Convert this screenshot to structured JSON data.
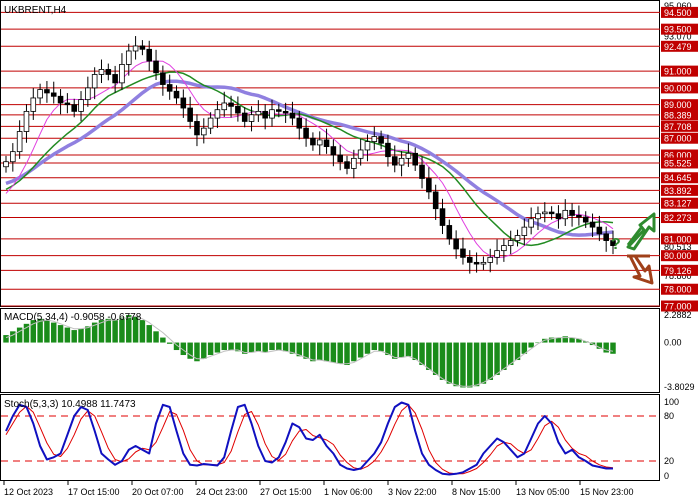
{
  "colors": {
    "price": "#000000",
    "level_line": "#c00000",
    "price_tag_bg": "#c00000",
    "price_tag_text": "#ffffff",
    "ma_fast": "#e040e0",
    "ma_mid": "#228b22",
    "ma_slow": "#9080e0",
    "macd_hist": "#1a8c1a",
    "macd_signal": "#c0c0c0",
    "stoch_main": "#1010c0",
    "stoch_signal": "#e00000",
    "arrow_up": "#2e8b2e",
    "arrow_down": "#a0401a",
    "grid_text": "#000000"
  },
  "chart_data": [
    {
      "type": "candlestick",
      "title": "UKBRENT,H4",
      "x_labels": [
        "12 Oct 2023",
        "17 Oct 15:00",
        "20 Oct 07:00",
        "24 Oct 23:00",
        "27 Oct 15:00",
        "1 Nov 06:00",
        "3 Nov 22:00",
        "8 Nov 15:00",
        "13 Nov 05:00",
        "15 Nov 23:00"
      ],
      "y_range": [
        77.0,
        95.06
      ],
      "y_top_label": "95.060",
      "levels": [
        "94.500",
        "93.500",
        "92.479",
        "91.000",
        "90.000",
        "89.000",
        "88.389",
        "87.708",
        "87.000",
        "86.000",
        "85.525",
        "84.645",
        "83.892",
        "83.127",
        "82.273",
        "81.000",
        "80.000",
        "79.126",
        "78.000",
        "77.000"
      ],
      "faint_labels": [
        "93.070",
        "80.513",
        "78.800"
      ],
      "close": [
        85.6,
        86.2,
        87.4,
        88.6,
        89.4,
        89.9,
        89.7,
        89.5,
        89.1,
        89.0,
        88.6,
        89.3,
        90.0,
        90.8,
        91.1,
        90.8,
        90.3,
        91.4,
        92.2,
        92.5,
        92.3,
        91.6,
        90.9,
        90.2,
        89.8,
        89.4,
        88.8,
        88.0,
        87.2,
        87.6,
        88.2,
        88.7,
        89.1,
        88.9,
        88.5,
        88.0,
        88.4,
        88.6,
        88.2,
        88.7,
        88.6,
        88.5,
        88.2,
        87.6,
        87.0,
        86.6,
        86.9,
        86.5,
        86.0,
        85.6,
        85.2,
        85.8,
        86.3,
        86.8,
        87.1,
        86.7,
        85.9,
        85.4,
        85.8,
        86.1,
        85.4,
        84.6,
        83.8,
        82.8,
        81.8,
        81.0,
        80.4,
        79.9,
        79.6,
        79.5,
        79.6,
        79.9,
        80.3,
        80.6,
        80.9,
        81.2,
        81.7,
        82.2,
        82.5,
        82.6,
        82.5,
        82.2,
        82.7,
        82.4,
        82.3,
        82.0,
        81.7,
        81.3,
        80.9,
        80.6
      ]
    },
    {
      "type": "bar",
      "title": "MACD(5,34,4) -0.9058 -0.6778",
      "y_labels": [
        "2.2882",
        "0.00",
        "-3.8029"
      ],
      "y_range": [
        -3.8029,
        2.2882
      ],
      "values": [
        0.6,
        0.9,
        1.2,
        1.5,
        1.8,
        1.9,
        1.8,
        1.6,
        1.4,
        1.2,
        1.0,
        1.1,
        1.3,
        1.6,
        1.8,
        1.9,
        1.8,
        2.0,
        2.2,
        2.1,
        1.8,
        1.4,
        0.9,
        0.4,
        -0.1,
        -0.6,
        -1.0,
        -1.3,
        -1.5,
        -1.3,
        -1.0,
        -0.8,
        -0.6,
        -0.6,
        -0.7,
        -0.9,
        -0.8,
        -0.7,
        -0.8,
        -0.6,
        -0.6,
        -0.7,
        -0.9,
        -1.1,
        -1.3,
        -1.5,
        -1.4,
        -1.5,
        -1.6,
        -1.7,
        -1.8,
        -1.5,
        -1.2,
        -0.9,
        -0.6,
        -0.7,
        -1.0,
        -1.3,
        -1.2,
        -1.1,
        -1.4,
        -1.8,
        -2.2,
        -2.6,
        -3.0,
        -3.3,
        -3.5,
        -3.6,
        -3.6,
        -3.5,
        -3.3,
        -3.0,
        -2.6,
        -2.2,
        -1.8,
        -1.4,
        -0.9,
        -0.4,
        0.0,
        0.3,
        0.4,
        0.4,
        0.5,
        0.4,
        0.3,
        0.1,
        -0.2,
        -0.5,
        -0.8,
        -0.9
      ],
      "signal": [
        0.4,
        0.6,
        0.9,
        1.2,
        1.5,
        1.7,
        1.8,
        1.7,
        1.5,
        1.3,
        1.1,
        1.1,
        1.2,
        1.4,
        1.6,
        1.8,
        1.8,
        1.9,
        2.0,
        2.1,
        1.9,
        1.6,
        1.2,
        0.8,
        0.3,
        -0.2,
        -0.6,
        -1.0,
        -1.3,
        -1.3,
        -1.1,
        -0.9,
        -0.7,
        -0.6,
        -0.6,
        -0.8,
        -0.8,
        -0.7,
        -0.8,
        -0.7,
        -0.6,
        -0.7,
        -0.8,
        -1.0,
        -1.2,
        -1.4,
        -1.4,
        -1.5,
        -1.6,
        -1.7,
        -1.7,
        -1.6,
        -1.3,
        -1.0,
        -0.7,
        -0.7,
        -0.9,
        -1.2,
        -1.2,
        -1.1,
        -1.3,
        -1.7,
        -2.1,
        -2.5,
        -2.9,
        -3.2,
        -3.4,
        -3.5,
        -3.5,
        -3.4,
        -3.2,
        -2.9,
        -2.5,
        -2.1,
        -1.7,
        -1.3,
        -0.9,
        -0.5,
        -0.1,
        0.2,
        0.3,
        0.4,
        0.4,
        0.4,
        0.3,
        0.1,
        -0.1,
        -0.4,
        -0.6,
        -0.7
      ]
    },
    {
      "type": "line",
      "title": "Stoch(5,3,3) 10.4988 11.7473",
      "y_labels": [
        "100",
        "80",
        "20",
        "0"
      ],
      "y_range": [
        0,
        100
      ],
      "levels": [
        80,
        20
      ],
      "k": [
        60,
        80,
        95,
        92,
        70,
        40,
        22,
        25,
        30,
        55,
        80,
        92,
        88,
        60,
        30,
        22,
        15,
        20,
        35,
        40,
        35,
        30,
        70,
        95,
        92,
        60,
        30,
        15,
        14,
        16,
        15,
        14,
        25,
        60,
        92,
        95,
        70,
        40,
        20,
        18,
        25,
        45,
        70,
        65,
        50,
        48,
        55,
        40,
        30,
        15,
        10,
        8,
        10,
        20,
        30,
        45,
        70,
        92,
        98,
        95,
        60,
        30,
        15,
        8,
        3,
        2,
        3,
        5,
        10,
        15,
        30,
        40,
        50,
        45,
        35,
        25,
        30,
        50,
        70,
        80,
        70,
        45,
        30,
        35,
        25,
        20,
        14,
        12,
        10,
        10
      ],
      "d": [
        55,
        70,
        85,
        93,
        85,
        65,
        44,
        29,
        26,
        37,
        55,
        76,
        87,
        80,
        59,
        37,
        22,
        19,
        23,
        32,
        37,
        35,
        45,
        65,
        86,
        82,
        61,
        35,
        20,
        15,
        15,
        15,
        18,
        33,
        59,
        82,
        86,
        68,
        43,
        26,
        21,
        29,
        47,
        60,
        62,
        54,
        51,
        48,
        42,
        28,
        18,
        11,
        9,
        13,
        20,
        32,
        48,
        69,
        87,
        95,
        84,
        62,
        35,
        18,
        9,
        4,
        3,
        3,
        6,
        10,
        18,
        28,
        40,
        45,
        43,
        35,
        30,
        35,
        50,
        67,
        73,
        65,
        48,
        37,
        30,
        27,
        20,
        15,
        12,
        11
      ]
    }
  ]
}
